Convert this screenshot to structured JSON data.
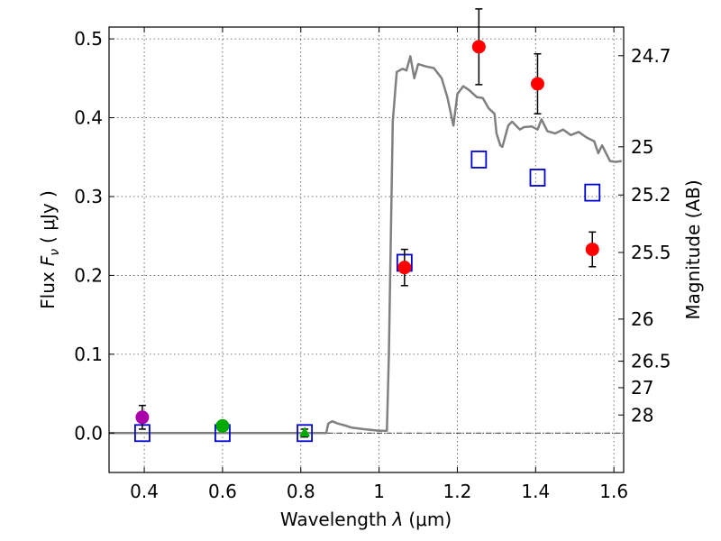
{
  "chart_data": {
    "type": "scatter",
    "xlabel_prefix": "Wavelength",
    "xlabel_symbol": "λ",
    "xlabel_unit": "(μm)",
    "ylabel_prefix": "Flux",
    "ylabel_symbol": "F",
    "ylabel_subscript": "ν",
    "ylabel_unit": "( μJy )",
    "y2label": "Magnitude (AB)",
    "xlim": [
      0.31,
      1.625
    ],
    "ylim": [
      -0.05,
      0.515
    ],
    "xticks": [
      0.4,
      0.6,
      0.8,
      1.0,
      1.2,
      1.4,
      1.6
    ],
    "xtick_labels": [
      "0.4",
      "0.6",
      "0.8",
      "1",
      "1.2",
      "1.4",
      "1.6"
    ],
    "yticks": [
      0.0,
      0.1,
      0.2,
      0.3,
      0.4,
      0.5
    ],
    "ytick_labels": [
      "0.0",
      "0.1",
      "0.2",
      "0.3",
      "0.4",
      "0.5"
    ],
    "mag_ticks": [
      24.7,
      25,
      25.2,
      25.5,
      26,
      26.5,
      27,
      28
    ],
    "mag_tick_labels": [
      "24.7",
      "25",
      "25.2",
      "25.5",
      "26",
      "26.5",
      "27",
      "28"
    ],
    "grid": true,
    "series": [
      {
        "name": "model SED",
        "kind": "line",
        "color": "#808080",
        "x": [
          0.31,
          0.85,
          0.865,
          0.87,
          0.88,
          0.895,
          0.91,
          0.93,
          0.96,
          1.0,
          1.02,
          1.025,
          1.035,
          1.045,
          1.06,
          1.07,
          1.08,
          1.09,
          1.1,
          1.12,
          1.14,
          1.16,
          1.175,
          1.19,
          1.2,
          1.215,
          1.23,
          1.25,
          1.265,
          1.28,
          1.295,
          1.3,
          1.31,
          1.315,
          1.33,
          1.34,
          1.36,
          1.37,
          1.39,
          1.405,
          1.415,
          1.43,
          1.45,
          1.47,
          1.49,
          1.51,
          1.53,
          1.55,
          1.56,
          1.57,
          1.59,
          1.605,
          1.62
        ],
        "y": [
          0.0,
          0.0,
          0.0,
          0.012,
          0.015,
          0.012,
          0.01,
          0.007,
          0.005,
          0.003,
          0.003,
          0.1,
          0.395,
          0.458,
          0.462,
          0.46,
          0.478,
          0.45,
          0.468,
          0.465,
          0.463,
          0.45,
          0.425,
          0.39,
          0.43,
          0.44,
          0.435,
          0.426,
          0.425,
          0.412,
          0.405,
          0.38,
          0.365,
          0.363,
          0.39,
          0.395,
          0.385,
          0.388,
          0.389,
          0.385,
          0.398,
          0.383,
          0.38,
          0.385,
          0.378,
          0.382,
          0.375,
          0.37,
          0.355,
          0.365,
          0.345,
          0.344,
          0.345
        ]
      },
      {
        "name": "model photometry",
        "kind": "open-square",
        "color": "#0000cc",
        "x": [
          0.395,
          0.6,
          0.81,
          1.065,
          1.255,
          1.405,
          1.545
        ],
        "y": [
          0.0,
          0.0,
          0.0,
          0.216,
          0.347,
          0.324,
          0.305
        ]
      },
      {
        "name": "observed purple",
        "kind": "filled-circle",
        "color": "#aa00aa",
        "x": [
          0.395
        ],
        "y": [
          0.02
        ],
        "err": [
          0.015
        ]
      },
      {
        "name": "observed green",
        "kind": "filled-circle",
        "color": "#00aa00",
        "x": [
          0.6
        ],
        "y": [
          0.009
        ],
        "err": [
          0.006
        ]
      },
      {
        "name": "observed green triangle",
        "kind": "filled-triangle",
        "color": "#00aa00",
        "x": [
          0.81
        ],
        "y": [
          0.0
        ],
        "err": [
          0.005
        ]
      },
      {
        "name": "observed red",
        "kind": "filled-circle",
        "color": "#ff0000",
        "x": [
          1.065,
          1.255,
          1.405,
          1.545
        ],
        "y": [
          0.21,
          0.49,
          0.443,
          0.233
        ],
        "err": [
          0.023,
          0.048,
          0.038,
          0.022
        ]
      }
    ]
  }
}
